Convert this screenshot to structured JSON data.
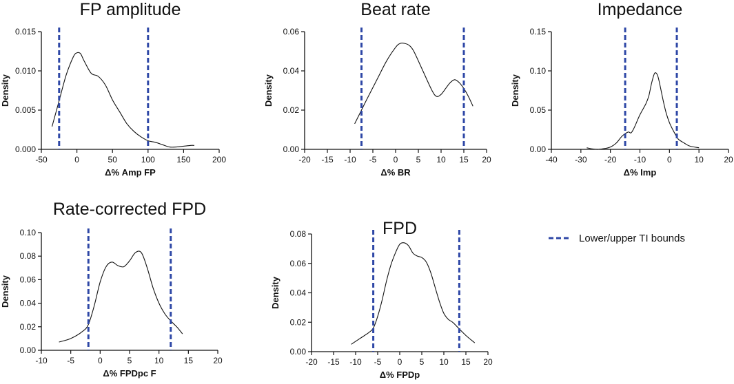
{
  "colors": {
    "bound": "#2e47a6",
    "curve": "#111111"
  },
  "legend": {
    "label": "Lower/upper TI bounds",
    "icon": "dashed-line"
  },
  "chart_data": [
    {
      "id": "fp-amplitude",
      "type": "line",
      "title": "FP amplitude",
      "xlabel": "Δ% Amp FP",
      "ylabel": "Density",
      "xlim": [
        -50,
        200
      ],
      "ylim": [
        0,
        0.015
      ],
      "xticks": [
        -50,
        0,
        50,
        100,
        150,
        200
      ],
      "yticks": [
        "0.000",
        "0.005",
        "0.010",
        "0.015"
      ],
      "bounds": [
        -25,
        100
      ],
      "x": [
        -35,
        -25,
        -15,
        -5,
        0,
        5,
        10,
        20,
        30,
        40,
        50,
        60,
        70,
        80,
        90,
        100,
        110,
        120,
        130,
        140,
        150,
        160,
        165
      ],
      "y": [
        0.0029,
        0.0062,
        0.0095,
        0.0118,
        0.0123,
        0.0122,
        0.0113,
        0.0097,
        0.0093,
        0.0082,
        0.0063,
        0.0048,
        0.0033,
        0.0023,
        0.0016,
        0.0011,
        0.0009,
        0.0006,
        0.0003,
        0.0003,
        0.0004,
        0.0005,
        0.0005
      ]
    },
    {
      "id": "beat-rate",
      "type": "line",
      "title": "Beat rate",
      "xlabel": "Δ% BR",
      "ylabel": "Density",
      "xlim": [
        -20,
        20
      ],
      "ylim": [
        0,
        0.06
      ],
      "xticks": [
        -20,
        -15,
        -10,
        -5,
        0,
        5,
        10,
        15,
        20
      ],
      "yticks": [
        "0.00",
        "0.02",
        "0.04",
        "0.06"
      ],
      "bounds": [
        -7.5,
        15
      ],
      "x": [
        -9,
        -7.5,
        -6,
        -4,
        -2,
        0,
        1,
        2,
        3,
        4,
        6,
        8,
        9,
        10,
        11,
        12,
        13,
        14,
        15,
        16,
        17
      ],
      "y": [
        0.013,
        0.02,
        0.027,
        0.036,
        0.045,
        0.052,
        0.054,
        0.054,
        0.053,
        0.05,
        0.04,
        0.03,
        0.027,
        0.028,
        0.031,
        0.034,
        0.0355,
        0.034,
        0.031,
        0.027,
        0.022
      ]
    },
    {
      "id": "impedance",
      "type": "line",
      "title": "Impedance",
      "xlabel": "Δ% Imp",
      "ylabel": "Density",
      "xlim": [
        -40,
        20
      ],
      "ylim": [
        0,
        0.15
      ],
      "xticks": [
        -40,
        -30,
        -20,
        -10,
        0,
        10,
        20
      ],
      "yticks": [
        "0.00",
        "0.05",
        "0.10",
        "0.15"
      ],
      "bounds": [
        -15,
        2.5
      ],
      "x": [
        -28,
        -26,
        -24,
        -22,
        -20,
        -18,
        -16,
        -14,
        -13,
        -12,
        -10,
        -8,
        -7,
        -6,
        -5,
        -4,
        -3,
        -2,
        -1,
        0,
        1,
        2,
        3,
        5,
        7,
        10
      ],
      "y": [
        0.002,
        0.0005,
        0.0,
        0.001,
        0.003,
        0.008,
        0.017,
        0.022,
        0.021,
        0.027,
        0.044,
        0.058,
        0.068,
        0.085,
        0.097,
        0.094,
        0.078,
        0.06,
        0.045,
        0.034,
        0.026,
        0.019,
        0.013,
        0.008,
        0.004,
        0.002
      ]
    },
    {
      "id": "rate-corrected-fpd",
      "type": "line",
      "title": "Rate-corrected FPD",
      "xlabel": "Δ% FPDpc F",
      "ylabel": "Density",
      "xlim": [
        -10,
        20
      ],
      "ylim": [
        0,
        0.1
      ],
      "xticks": [
        -10,
        -5,
        0,
        5,
        10,
        15,
        20
      ],
      "yticks": [
        "0.00",
        "0.02",
        "0.04",
        "0.06",
        "0.08",
        "0.10"
      ],
      "bounds": [
        -2,
        12
      ],
      "x": [
        -7,
        -5,
        -3,
        -2,
        -1,
        0,
        1,
        2,
        3,
        4,
        5,
        6,
        7,
        8,
        9,
        10,
        11,
        12,
        13,
        14
      ],
      "y": [
        0.007,
        0.01,
        0.016,
        0.022,
        0.038,
        0.058,
        0.071,
        0.075,
        0.072,
        0.071,
        0.076,
        0.083,
        0.083,
        0.07,
        0.053,
        0.04,
        0.031,
        0.025,
        0.02,
        0.014
      ]
    },
    {
      "id": "fpd",
      "type": "line",
      "title": "FPD",
      "xlabel": "Δ% FPDp",
      "ylabel": "Density",
      "xlim": [
        -20,
        20
      ],
      "ylim": [
        0,
        0.08
      ],
      "xticks": [
        -20,
        -15,
        -10,
        -5,
        0,
        5,
        10,
        15,
        20
      ],
      "yticks": [
        "0.00",
        "0.02",
        "0.04",
        "0.06",
        "0.08"
      ],
      "bounds": [
        -6,
        13.5
      ],
      "x": [
        -11,
        -9,
        -7,
        -6,
        -5,
        -4,
        -3,
        -2,
        -1,
        0,
        1,
        2,
        3,
        4,
        5,
        6,
        7,
        8,
        9,
        10,
        11,
        12,
        13,
        15,
        17
      ],
      "y": [
        0.005,
        0.009,
        0.013,
        0.016,
        0.024,
        0.035,
        0.048,
        0.059,
        0.067,
        0.073,
        0.074,
        0.072,
        0.067,
        0.065,
        0.064,
        0.061,
        0.054,
        0.044,
        0.034,
        0.026,
        0.022,
        0.02,
        0.017,
        0.011,
        0.006
      ]
    }
  ]
}
